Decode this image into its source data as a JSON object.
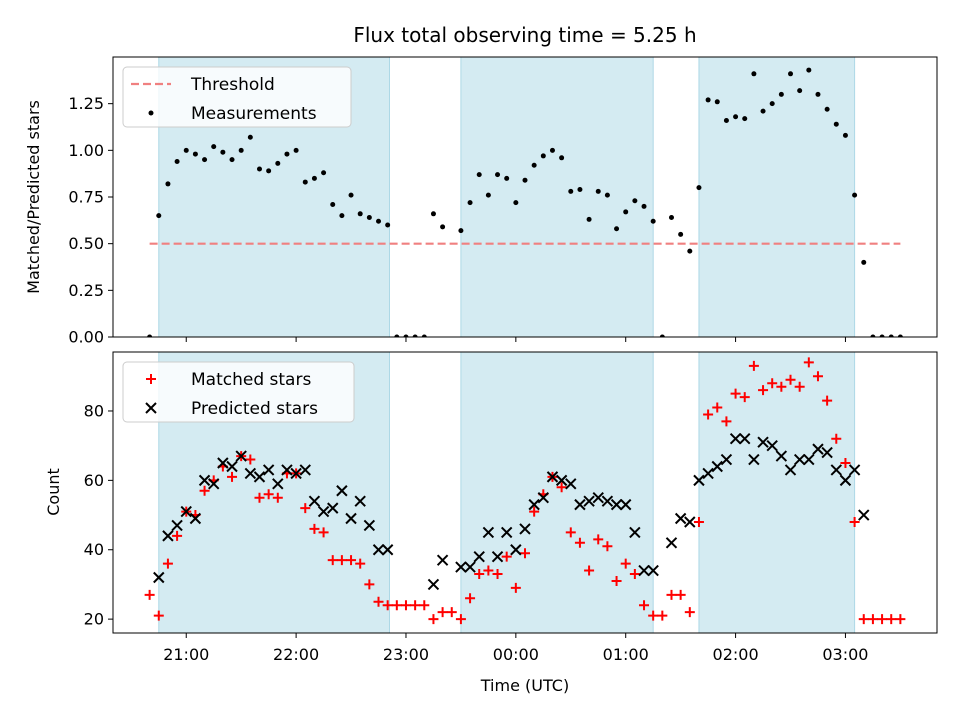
{
  "chart_data": [
    {
      "type": "scatter",
      "title": "Flux total observing time = 5.25 h",
      "xlabel": "",
      "ylabel": "Matched/Predicted stars",
      "xlim": [
        "20:20",
        "03:50"
      ],
      "ylim": [
        0,
        1.5
      ],
      "yticks": [
        0.0,
        0.25,
        0.5,
        0.75,
        1.0,
        1.25
      ],
      "ytick_labels": [
        "0.00",
        "0.25",
        "0.50",
        "0.75",
        "1.00",
        "1.25"
      ],
      "legend": {
        "placement": "upper-left",
        "entries": [
          "Threshold",
          "Measurements"
        ]
      },
      "threshold": {
        "name": "Threshold",
        "value": 0.5,
        "x_range": [
          "20:40",
          "03:30"
        ],
        "color": "#f08080",
        "style": "dashed"
      },
      "shaded_intervals": [
        [
          "20:45",
          "22:51"
        ],
        [
          "23:30",
          "01:15"
        ],
        [
          "01:40",
          "03:05"
        ]
      ],
      "series": [
        {
          "name": "Measurements",
          "color": "#000000",
          "points": [
            [
              "20:40",
              0.0
            ],
            [
              "20:45",
              0.65
            ],
            [
              "20:50",
              0.82
            ],
            [
              "20:55",
              0.94
            ],
            [
              "21:00",
              1.0
            ],
            [
              "21:05",
              0.98
            ],
            [
              "21:10",
              0.95
            ],
            [
              "21:15",
              1.02
            ],
            [
              "21:20",
              0.99
            ],
            [
              "21:25",
              0.95
            ],
            [
              "21:30",
              1.0
            ],
            [
              "21:35",
              1.07
            ],
            [
              "21:40",
              0.9
            ],
            [
              "21:45",
              0.89
            ],
            [
              "21:50",
              0.93
            ],
            [
              "21:55",
              0.98
            ],
            [
              "22:00",
              1.0
            ],
            [
              "22:05",
              0.83
            ],
            [
              "22:10",
              0.85
            ],
            [
              "22:15",
              0.88
            ],
            [
              "22:20",
              0.71
            ],
            [
              "22:25",
              0.65
            ],
            [
              "22:30",
              0.76
            ],
            [
              "22:35",
              0.66
            ],
            [
              "22:40",
              0.64
            ],
            [
              "22:45",
              0.62
            ],
            [
              "22:50",
              0.6
            ],
            [
              "22:55",
              0.0
            ],
            [
              "23:00",
              0.0
            ],
            [
              "23:05",
              0.0
            ],
            [
              "23:10",
              0.0
            ],
            [
              "23:15",
              0.66
            ],
            [
              "23:20",
              0.59
            ],
            [
              "23:30",
              0.57
            ],
            [
              "23:35",
              0.72
            ],
            [
              "23:40",
              0.87
            ],
            [
              "23:45",
              0.76
            ],
            [
              "23:50",
              0.87
            ],
            [
              "23:55",
              0.85
            ],
            [
              "00:00",
              0.72
            ],
            [
              "00:05",
              0.84
            ],
            [
              "00:10",
              0.92
            ],
            [
              "00:15",
              0.97
            ],
            [
              "00:20",
              1.0
            ],
            [
              "00:25",
              0.96
            ],
            [
              "00:30",
              0.78
            ],
            [
              "00:35",
              0.79
            ],
            [
              "00:40",
              0.63
            ],
            [
              "00:45",
              0.78
            ],
            [
              "00:50",
              0.76
            ],
            [
              "00:55",
              0.58
            ],
            [
              "01:00",
              0.67
            ],
            [
              "01:05",
              0.73
            ],
            [
              "01:10",
              0.7
            ],
            [
              "01:15",
              0.62
            ],
            [
              "01:20",
              0.0
            ],
            [
              "01:25",
              0.64
            ],
            [
              "01:30",
              0.55
            ],
            [
              "01:35",
              0.46
            ],
            [
              "01:40",
              0.8
            ],
            [
              "01:45",
              1.27
            ],
            [
              "01:50",
              1.26
            ],
            [
              "01:55",
              1.16
            ],
            [
              "02:00",
              1.18
            ],
            [
              "02:05",
              1.17
            ],
            [
              "02:10",
              1.41
            ],
            [
              "02:15",
              1.21
            ],
            [
              "02:20",
              1.25
            ],
            [
              "02:25",
              1.3
            ],
            [
              "02:30",
              1.41
            ],
            [
              "02:35",
              1.32
            ],
            [
              "02:40",
              1.43
            ],
            [
              "02:45",
              1.3
            ],
            [
              "02:50",
              1.22
            ],
            [
              "02:55",
              1.14
            ],
            [
              "03:00",
              1.08
            ],
            [
              "03:05",
              0.76
            ],
            [
              "03:10",
              0.4
            ],
            [
              "03:15",
              0.0
            ],
            [
              "03:20",
              0.0
            ],
            [
              "03:25",
              0.0
            ],
            [
              "03:30",
              0.0
            ]
          ]
        }
      ]
    },
    {
      "type": "scatter",
      "title": "",
      "xlabel": "Time (UTC)",
      "ylabel": "Count",
      "xlim": [
        "20:20",
        "03:50"
      ],
      "ylim": [
        16,
        97
      ],
      "yticks": [
        20,
        40,
        60,
        80
      ],
      "ytick_labels": [
        "20",
        "40",
        "60",
        "80"
      ],
      "xticks": [
        "21:00",
        "22:00",
        "23:00",
        "00:00",
        "01:00",
        "02:00",
        "03:00"
      ],
      "xtick_labels": [
        "21:00",
        "22:00",
        "23:00",
        "00:00",
        "01:00",
        "02:00",
        "03:00"
      ],
      "legend": {
        "placement": "upper-left",
        "entries": [
          "Matched stars",
          "Predicted stars"
        ]
      },
      "shaded_intervals": [
        [
          "20:45",
          "22:51"
        ],
        [
          "23:30",
          "01:15"
        ],
        [
          "01:40",
          "03:05"
        ]
      ],
      "series": [
        {
          "name": "Matched stars",
          "color": "#ff0000",
          "marker": "plus",
          "points": [
            [
              "20:40",
              27
            ],
            [
              "20:45",
              21
            ],
            [
              "20:50",
              36
            ],
            [
              "20:55",
              44
            ],
            [
              "21:00",
              51
            ],
            [
              "21:05",
              50
            ],
            [
              "21:10",
              57
            ],
            [
              "21:15",
              60
            ],
            [
              "21:20",
              64
            ],
            [
              "21:25",
              61
            ],
            [
              "21:30",
              67
            ],
            [
              "21:35",
              66
            ],
            [
              "21:40",
              55
            ],
            [
              "21:45",
              56
            ],
            [
              "21:50",
              55
            ],
            [
              "21:55",
              62
            ],
            [
              "22:00",
              62
            ],
            [
              "22:05",
              52
            ],
            [
              "22:10",
              46
            ],
            [
              "22:15",
              45
            ],
            [
              "22:20",
              37
            ],
            [
              "22:25",
              37
            ],
            [
              "22:30",
              37
            ],
            [
              "22:35",
              36
            ],
            [
              "22:40",
              30
            ],
            [
              "22:45",
              25
            ],
            [
              "22:50",
              24
            ],
            [
              "22:55",
              24
            ],
            [
              "23:00",
              24
            ],
            [
              "23:05",
              24
            ],
            [
              "23:10",
              24
            ],
            [
              "23:15",
              20
            ],
            [
              "23:20",
              22
            ],
            [
              "23:25",
              22
            ],
            [
              "23:30",
              20
            ],
            [
              "23:35",
              26
            ],
            [
              "23:40",
              33
            ],
            [
              "23:45",
              34
            ],
            [
              "23:50",
              33
            ],
            [
              "23:55",
              38
            ],
            [
              "00:00",
              29
            ],
            [
              "00:05",
              39
            ],
            [
              "00:10",
              51
            ],
            [
              "00:15",
              56
            ],
            [
              "00:20",
              61
            ],
            [
              "00:25",
              58
            ],
            [
              "00:30",
              45
            ],
            [
              "00:35",
              42
            ],
            [
              "00:40",
              34
            ],
            [
              "00:45",
              43
            ],
            [
              "00:50",
              41
            ],
            [
              "00:55",
              31
            ],
            [
              "01:00",
              36
            ],
            [
              "01:05",
              33
            ],
            [
              "01:10",
              24
            ],
            [
              "01:15",
              21
            ],
            [
              "01:20",
              21
            ],
            [
              "01:25",
              27
            ],
            [
              "01:30",
              27
            ],
            [
              "01:35",
              22
            ],
            [
              "01:40",
              48
            ],
            [
              "01:45",
              79
            ],
            [
              "01:50",
              81
            ],
            [
              "01:55",
              77
            ],
            [
              "02:00",
              85
            ],
            [
              "02:05",
              84
            ],
            [
              "02:10",
              93
            ],
            [
              "02:15",
              86
            ],
            [
              "02:20",
              88
            ],
            [
              "02:25",
              87
            ],
            [
              "02:30",
              89
            ],
            [
              "02:35",
              87
            ],
            [
              "02:40",
              94
            ],
            [
              "02:45",
              90
            ],
            [
              "02:50",
              83
            ],
            [
              "02:55",
              72
            ],
            [
              "03:00",
              65
            ],
            [
              "03:05",
              48
            ],
            [
              "03:10",
              20
            ],
            [
              "03:15",
              20
            ],
            [
              "03:20",
              20
            ],
            [
              "03:25",
              20
            ],
            [
              "03:30",
              20
            ]
          ]
        },
        {
          "name": "Predicted stars",
          "color": "#000000",
          "marker": "x",
          "points": [
            [
              "20:45",
              32
            ],
            [
              "20:50",
              44
            ],
            [
              "20:55",
              47
            ],
            [
              "21:00",
              51
            ],
            [
              "21:05",
              49
            ],
            [
              "21:10",
              60
            ],
            [
              "21:15",
              59
            ],
            [
              "21:20",
              65
            ],
            [
              "21:25",
              64
            ],
            [
              "21:30",
              67
            ],
            [
              "21:35",
              62
            ],
            [
              "21:40",
              61
            ],
            [
              "21:45",
              63
            ],
            [
              "21:50",
              59
            ],
            [
              "21:55",
              63
            ],
            [
              "22:00",
              62
            ],
            [
              "22:05",
              63
            ],
            [
              "22:10",
              54
            ],
            [
              "22:15",
              51
            ],
            [
              "22:20",
              52
            ],
            [
              "22:25",
              57
            ],
            [
              "22:30",
              49
            ],
            [
              "22:35",
              54
            ],
            [
              "22:40",
              47
            ],
            [
              "22:45",
              40
            ],
            [
              "22:50",
              40
            ],
            [
              "23:15",
              30
            ],
            [
              "23:20",
              37
            ],
            [
              "23:30",
              35
            ],
            [
              "23:35",
              35
            ],
            [
              "23:40",
              38
            ],
            [
              "23:45",
              45
            ],
            [
              "23:50",
              38
            ],
            [
              "23:55",
              45
            ],
            [
              "00:00",
              40
            ],
            [
              "00:05",
              46
            ],
            [
              "00:10",
              53
            ],
            [
              "00:15",
              55
            ],
            [
              "00:20",
              61
            ],
            [
              "00:25",
              60
            ],
            [
              "00:30",
              59
            ],
            [
              "00:35",
              53
            ],
            [
              "00:40",
              54
            ],
            [
              "00:45",
              55
            ],
            [
              "00:50",
              54
            ],
            [
              "00:55",
              53
            ],
            [
              "01:00",
              53
            ],
            [
              "01:05",
              45
            ],
            [
              "01:10",
              34
            ],
            [
              "01:15",
              34
            ],
            [
              "01:25",
              42
            ],
            [
              "01:30",
              49
            ],
            [
              "01:35",
              48
            ],
            [
              "01:40",
              60
            ],
            [
              "01:45",
              62
            ],
            [
              "01:50",
              64
            ],
            [
              "01:55",
              66
            ],
            [
              "02:00",
              72
            ],
            [
              "02:05",
              72
            ],
            [
              "02:10",
              66
            ],
            [
              "02:15",
              71
            ],
            [
              "02:20",
              70
            ],
            [
              "02:25",
              67
            ],
            [
              "02:30",
              63
            ],
            [
              "02:35",
              66
            ],
            [
              "02:40",
              66
            ],
            [
              "02:45",
              69
            ],
            [
              "02:50",
              68
            ],
            [
              "02:55",
              63
            ],
            [
              "03:00",
              60
            ],
            [
              "03:05",
              63
            ],
            [
              "03:10",
              50
            ]
          ]
        }
      ]
    }
  ],
  "colors": {
    "shade": "#add8e6",
    "threshold": "#f08080",
    "matched": "#ff0000",
    "predicted": "#000000"
  }
}
